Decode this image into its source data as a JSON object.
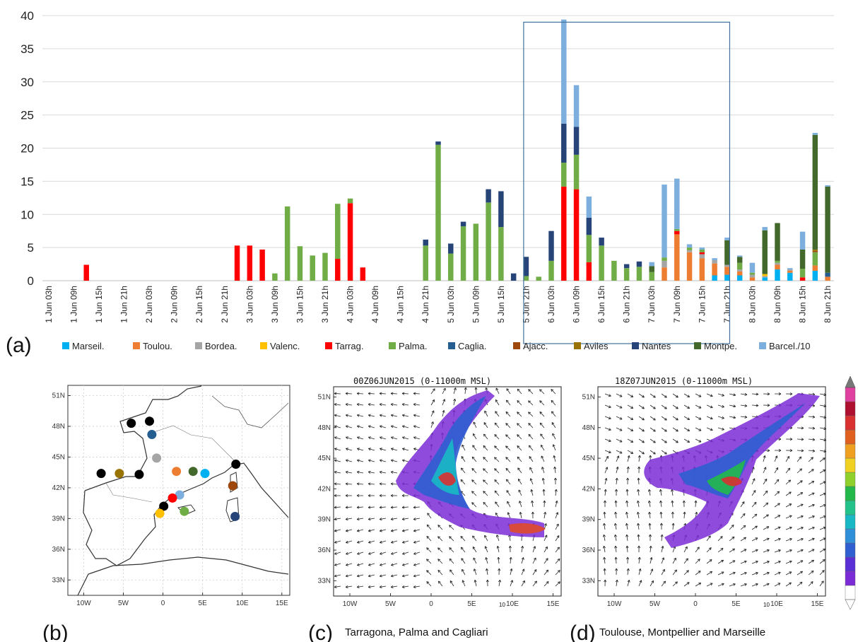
{
  "panels": {
    "a": "(a)",
    "b": "(b)",
    "c": "(c)",
    "d": "(d)"
  },
  "colors": {
    "Marseil.": "#00b0f0",
    "Toulou.": "#ed7d31",
    "Bordea.": "#a5a5a5",
    "Valenc.": "#ffc000",
    "Tarrag.": "#ff0000",
    "Palma.": "#70ad47",
    "Caglia.": "#255e91",
    "Ajacc.": "#9e480e",
    "Aviles": "#997300",
    "Nantes": "#264478",
    "Montpe.": "#43682b",
    "Barcel./10": "#7cafdd"
  },
  "chart_data": {
    "type": "bar",
    "stacked": true,
    "ylim": [
      0,
      40
    ],
    "yticks": [
      0,
      5,
      10,
      15,
      20,
      25,
      30,
      35,
      40
    ],
    "grid": true,
    "legend_placement": "bottom",
    "highlight_box": {
      "x_from": "5 Jun 21h",
      "x_to": "7 Jun 21h",
      "y_top": 39
    },
    "categories": [
      "1 Jun 03h",
      "1 Jun 06h",
      "1 Jun 09h",
      "1 Jun 12h",
      "1 Jun 15h",
      "1 Jun 18h",
      "1 Jun 21h",
      "2 Jun 00h",
      "2 Jun 03h",
      "2 Jun 06h",
      "2 Jun 09h",
      "2 Jun 12h",
      "2 Jun 15h",
      "2 Jun 18h",
      "2 Jun 21h",
      "3 Jun 00h",
      "3 Jun 03h",
      "3 Jun 06h",
      "3 Jun 09h",
      "3 Jun 12h",
      "3 Jun 15h",
      "3 Jun 18h",
      "3 Jun 21h",
      "4 Jun 00h",
      "4 Jun 03h",
      "4 Jun 06h",
      "4 Jun 09h",
      "4 Jun 12h",
      "4 Jun 15h",
      "4 Jun 18h",
      "4 Jun 21h",
      "5 Jun 00h",
      "5 Jun 03h",
      "5 Jun 06h",
      "5 Jun 09h",
      "5 Jun 12h",
      "5 Jun 15h",
      "5 Jun 18h",
      "5 Jun 21h",
      "6 Jun 00h",
      "6 Jun 03h",
      "6 Jun 06h",
      "6 Jun 09h",
      "6 Jun 12h",
      "6 Jun 15h",
      "6 Jun 18h",
      "6 Jun 21h",
      "7 Jun 00h",
      "7 Jun 03h",
      "7 Jun 06h",
      "7 Jun 09h",
      "7 Jun 12h",
      "7 Jun 15h",
      "7 Jun 18h",
      "7 Jun 21h",
      "8 Jun 00h",
      "8 Jun 03h",
      "8 Jun 06h",
      "8 Jun 09h",
      "8 Jun 12h",
      "8 Jun 15h",
      "8 Jun 18h",
      "8 Jun 21h"
    ],
    "xtick_labels": [
      "1 Jun 03h",
      "1 Jun 09h",
      "1 Jun 15h",
      "1 Jun 21h",
      "2 Jun 03h",
      "2 Jun 09h",
      "2 Jun 15h",
      "2 Jun 21h",
      "3 Jun 03h",
      "3 Jun 09h",
      "3 Jun 15h",
      "3 Jun 21h",
      "4 Jun 03h",
      "4 Jun 09h",
      "4 Jun 15h",
      "4 Jun 21h",
      "5 Jun 03h",
      "5 Jun 09h",
      "5 Jun 15h",
      "5 Jun 21h",
      "6 Jun 03h",
      "6 Jun 09h",
      "6 Jun 15h",
      "6 Jun 21h",
      "7 Jun 03h",
      "7 Jun 09h",
      "7 Jun 15h",
      "7 Jun 21h",
      "8 Jun 03h",
      "8 Jun 09h",
      "8 Jun 15h",
      "8 Jun 21h"
    ],
    "series": [
      {
        "name": "Marseil.",
        "values": [
          0,
          0,
          0,
          0,
          0,
          0,
          0,
          0,
          0,
          0,
          0,
          0,
          0,
          0,
          0,
          0,
          0,
          0,
          0,
          0,
          0,
          0,
          0,
          0,
          0,
          0,
          0,
          0,
          0,
          0,
          0,
          0,
          0,
          0,
          0,
          0,
          0,
          0,
          0,
          0,
          0,
          0,
          0,
          0,
          0,
          0,
          0,
          0,
          0,
          0,
          0,
          0,
          0,
          0.8,
          0.9,
          0.8,
          0,
          0.5,
          1.7,
          1.2,
          0,
          1.5,
          0
        ]
      },
      {
        "name": "Toulou.",
        "values": [
          0,
          0,
          0,
          0,
          0,
          0,
          0,
          0,
          0,
          0,
          0,
          0,
          0,
          0,
          0,
          0,
          0,
          0,
          0,
          0,
          0,
          0,
          0,
          0,
          0,
          0,
          0,
          0,
          0,
          0,
          0,
          0,
          0,
          0,
          0,
          0,
          0,
          0,
          0,
          0,
          0,
          0,
          0,
          0,
          0,
          0,
          0,
          0,
          0,
          2.0,
          7.0,
          4.3,
          3.4,
          1.8,
          1.2,
          0.6,
          0.5,
          0,
          0.7,
          0.3,
          0,
          0.8,
          0.6
        ]
      },
      {
        "name": "Bordea.",
        "values": [
          0,
          0,
          0,
          0,
          0,
          0,
          0,
          0,
          0,
          0,
          0,
          0,
          0,
          0,
          0,
          0,
          0,
          0,
          0,
          0,
          0,
          0,
          0,
          0,
          0,
          0,
          0,
          0,
          0,
          0,
          0,
          0,
          0,
          0,
          0,
          0,
          0,
          0,
          0,
          0,
          0,
          0,
          0,
          0,
          0,
          0,
          0,
          0,
          0,
          1.0,
          0,
          0.3,
          0.6,
          0.5,
          0.3,
          0.3,
          0.4,
          0.2,
          0.3,
          0.2,
          0,
          0,
          0
        ]
      },
      {
        "name": "Valenc.",
        "values": [
          0,
          0,
          0,
          0,
          0,
          0,
          0,
          0,
          0,
          0,
          0,
          0,
          0,
          0,
          0,
          0,
          0,
          0,
          0,
          0,
          0,
          0,
          0,
          0,
          0,
          0,
          0,
          0,
          0,
          0,
          0,
          0,
          0,
          0,
          0,
          0,
          0,
          0,
          0,
          0,
          0,
          0,
          0,
          0,
          0,
          0,
          0,
          0,
          0,
          0,
          0,
          0,
          0,
          0,
          0,
          0,
          0,
          0.3,
          0,
          0,
          0,
          0,
          0
        ]
      },
      {
        "name": "Tarrag.",
        "values": [
          0,
          0,
          0,
          2.4,
          0,
          0,
          0,
          0,
          0,
          0,
          0,
          0,
          0,
          0,
          0,
          5.3,
          5.3,
          4.7,
          0,
          0,
          0,
          0,
          0,
          3.3,
          11.7,
          2.0,
          0,
          0,
          0,
          0,
          0,
          0,
          0,
          0,
          0,
          0,
          0,
          0,
          0,
          0,
          0,
          14.2,
          13.8,
          2.8,
          0,
          0,
          0,
          0,
          0,
          0,
          0.5,
          0,
          0.3,
          0,
          0,
          0,
          0,
          0,
          0,
          0,
          0.5,
          0,
          0
        ]
      },
      {
        "name": "Palma.",
        "values": [
          0,
          0,
          0,
          0,
          0,
          0,
          0,
          0,
          0,
          0,
          0,
          0,
          0,
          0,
          0,
          0,
          0,
          0,
          1.1,
          11.2,
          5.2,
          3.8,
          4.2,
          8.3,
          0.7,
          0,
          0,
          0,
          0,
          0,
          5.3,
          20.5,
          4.1,
          8.2,
          8.6,
          11.8,
          8.1,
          0,
          0.7,
          0.6,
          3.0,
          3.6,
          5.2,
          4.1,
          5.3,
          3.0,
          1.9,
          2.1,
          1.3,
          0.5,
          0.3,
          0.4,
          0.4,
          0,
          0,
          1.0,
          0.3,
          0,
          0.3,
          0,
          1.3,
          2.0,
          0
        ]
      },
      {
        "name": "Caglia.",
        "values": [
          0,
          0,
          0,
          0,
          0,
          0,
          0,
          0,
          0,
          0,
          0,
          0,
          0,
          0,
          0,
          0,
          0,
          0,
          0,
          0,
          0,
          0,
          0,
          0,
          0,
          0,
          0,
          0,
          0,
          0,
          0,
          0,
          0,
          0,
          0,
          0,
          0,
          0,
          0,
          0,
          0,
          0,
          0,
          0,
          0,
          0,
          0,
          0,
          0,
          0,
          0,
          0,
          0,
          0,
          0,
          0,
          0,
          0,
          0,
          0,
          0,
          0,
          0.6
        ]
      },
      {
        "name": "Ajacc.",
        "values": [
          0,
          0,
          0,
          0,
          0,
          0,
          0,
          0,
          0,
          0,
          0,
          0,
          0,
          0,
          0,
          0,
          0,
          0,
          0,
          0,
          0,
          0,
          0,
          0,
          0,
          0,
          0,
          0,
          0,
          0,
          0,
          0,
          0,
          0,
          0,
          0,
          0,
          0,
          0,
          0,
          0,
          0,
          0,
          0,
          0,
          0,
          0,
          0,
          0,
          0,
          0,
          0,
          0,
          0,
          0,
          0,
          0,
          0,
          0,
          0,
          0,
          0.2,
          0
        ]
      },
      {
        "name": "Aviles",
        "values": [
          0,
          0,
          0,
          0,
          0,
          0,
          0,
          0,
          0,
          0,
          0,
          0,
          0,
          0,
          0,
          0,
          0,
          0,
          0,
          0,
          0,
          0,
          0,
          0,
          0,
          0,
          0,
          0,
          0,
          0,
          0,
          0,
          0,
          0,
          0,
          0,
          0,
          0,
          0,
          0,
          0,
          0,
          0,
          0,
          0,
          0,
          0,
          0,
          0,
          0,
          0,
          0,
          0,
          0,
          0,
          0,
          0,
          0,
          0,
          0,
          0,
          0.2,
          0
        ]
      },
      {
        "name": "Nantes",
        "values": [
          0,
          0,
          0,
          0,
          0,
          0,
          0,
          0,
          0,
          0,
          0,
          0,
          0,
          0,
          0,
          0,
          0,
          0,
          0,
          0,
          0,
          0,
          0,
          0,
          0,
          0,
          0,
          0,
          0,
          0,
          0.9,
          0.5,
          1.5,
          0.7,
          0,
          2.0,
          5.4,
          1.1,
          2.9,
          0,
          4.5,
          5.9,
          4.2,
          2.6,
          1.2,
          0,
          0.6,
          0.8,
          0,
          0,
          0,
          0,
          0,
          0,
          0,
          0,
          0,
          0,
          0,
          0,
          0,
          0,
          0
        ]
      },
      {
        "name": "Montpe.",
        "values": [
          0,
          0,
          0,
          0,
          0,
          0,
          0,
          0,
          0,
          0,
          0,
          0,
          0,
          0,
          0,
          0,
          0,
          0,
          0,
          0,
          0,
          0,
          0,
          0,
          0,
          0,
          0,
          0,
          0,
          0,
          0,
          0,
          0,
          0,
          0,
          0,
          0,
          0,
          0,
          0,
          0,
          0,
          0,
          0,
          0,
          0,
          0,
          0,
          0.9,
          0,
          0,
          0,
          0,
          0,
          3.7,
          0.9,
          0,
          6.6,
          5.7,
          0,
          2.9,
          17.3,
          13.0
        ]
      },
      {
        "name": "Barcel./10",
        "values": [
          0,
          0,
          0,
          0,
          0,
          0,
          0,
          0,
          0,
          0,
          0,
          0,
          0,
          0,
          0,
          0,
          0,
          0,
          0,
          0,
          0,
          0,
          0,
          0,
          0,
          0,
          0,
          0,
          0,
          0,
          0,
          0,
          0,
          0,
          0,
          0,
          0,
          0,
          0,
          0,
          0,
          15.7,
          6.3,
          3.2,
          0,
          0,
          0,
          0,
          0.6,
          11.0,
          7.6,
          0.5,
          0.3,
          0.3,
          0.4,
          0.2,
          1.5,
          0.5,
          0,
          0.2,
          2.7,
          0.3,
          0.2
        ]
      }
    ]
  },
  "maps": {
    "lat_ticks": [
      "51N",
      "48N",
      "45N",
      "42N",
      "39N",
      "36N",
      "33N"
    ],
    "lon_ticks": [
      "10W",
      "5W",
      "0",
      "5E",
      "10E",
      "15E"
    ],
    "vector_scale_label": "10",
    "c_title": "00Z06JUN2015 (0-11000m MSL)",
    "d_title": "18Z07JUN2015 (0-11000m MSL)",
    "c_caption": "Tarragona, Palma and Cagliari",
    "d_caption": "Toulouse, Montpellier and Marseille",
    "stations": [
      {
        "lon": -4.0,
        "lat": 48.3,
        "color": "#000000"
      },
      {
        "lon": -1.7,
        "lat": 48.5,
        "color": "#000000"
      },
      {
        "lon": -1.4,
        "lat": 47.2,
        "color": "#255e91"
      },
      {
        "lon": -0.8,
        "lat": 44.9,
        "color": "#a5a5a5"
      },
      {
        "lon": -7.8,
        "lat": 43.4,
        "color": "#000000"
      },
      {
        "lon": -5.5,
        "lat": 43.4,
        "color": "#997300"
      },
      {
        "lon": -3.0,
        "lat": 43.3,
        "color": "#000000"
      },
      {
        "lon": 1.7,
        "lat": 43.6,
        "color": "#ed7d31"
      },
      {
        "lon": 3.8,
        "lat": 43.6,
        "color": "#43682b"
      },
      {
        "lon": 5.3,
        "lat": 43.4,
        "color": "#00b0f0"
      },
      {
        "lon": 9.2,
        "lat": 44.3,
        "color": "#000000"
      },
      {
        "lon": 8.8,
        "lat": 42.2,
        "color": "#9e480e"
      },
      {
        "lon": 2.1,
        "lat": 41.3,
        "color": "#7cafdd"
      },
      {
        "lon": 1.2,
        "lat": 41.0,
        "color": "#ff0000"
      },
      {
        "lon": 0.1,
        "lat": 40.2,
        "color": "#000000"
      },
      {
        "lon": -0.4,
        "lat": 39.5,
        "color": "#ffc000"
      },
      {
        "lon": 2.7,
        "lat": 39.7,
        "color": "#70ad47"
      },
      {
        "lon": 9.1,
        "lat": 39.2,
        "color": "#264478"
      }
    ]
  }
}
